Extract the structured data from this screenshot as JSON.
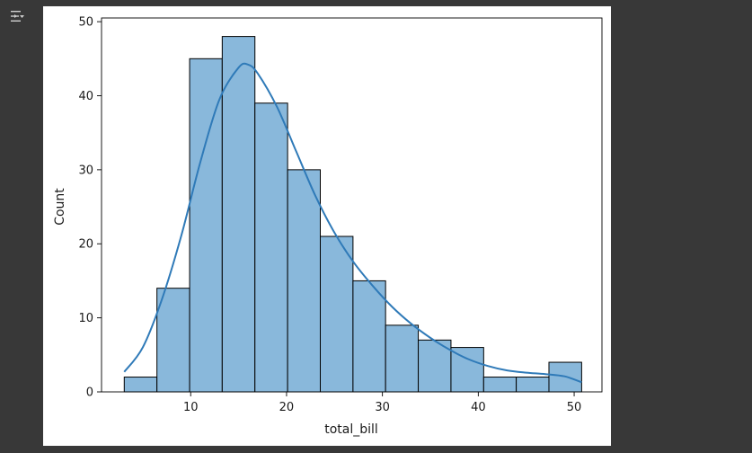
{
  "cell": {
    "output_toggle_icon": "output-collapse-icon"
  },
  "chart_data": {
    "type": "bar",
    "subtype": "histogram-with-kde",
    "xlabel": "total_bill",
    "ylabel": "Count",
    "xlim": [
      0.7,
      52.9
    ],
    "ylim": [
      0,
      50.5
    ],
    "xticks": [
      10,
      20,
      30,
      40,
      50
    ],
    "yticks": [
      0,
      10,
      20,
      30,
      40,
      50
    ],
    "grid": false,
    "bin_edges": [
      3.07,
      6.48,
      9.89,
      13.29,
      16.7,
      20.11,
      23.52,
      26.93,
      30.33,
      33.74,
      37.15,
      40.56,
      43.96,
      47.37,
      50.78
    ],
    "values": [
      2,
      14,
      45,
      48,
      39,
      30,
      21,
      15,
      9,
      7,
      6,
      2,
      2,
      4
    ],
    "bar_color": "#89b8db",
    "bar_edge_color": "#000000",
    "kde": {
      "color": "#2f7ab8",
      "x": [
        3.07,
        5,
        7,
        9,
        11,
        13,
        15,
        16,
        17,
        19,
        21,
        23,
        25,
        27,
        29,
        31,
        33,
        35,
        37,
        39,
        41,
        43,
        45,
        47,
        49,
        50.78
      ],
      "y": [
        2.7,
        6,
        12.5,
        21,
        31,
        39.5,
        43.8,
        44.2,
        43,
        38.5,
        32.5,
        26.5,
        21.5,
        17.5,
        14.3,
        11.5,
        9.2,
        7.3,
        5.7,
        4.4,
        3.5,
        2.9,
        2.6,
        2.4,
        2.1,
        1.3
      ]
    }
  }
}
